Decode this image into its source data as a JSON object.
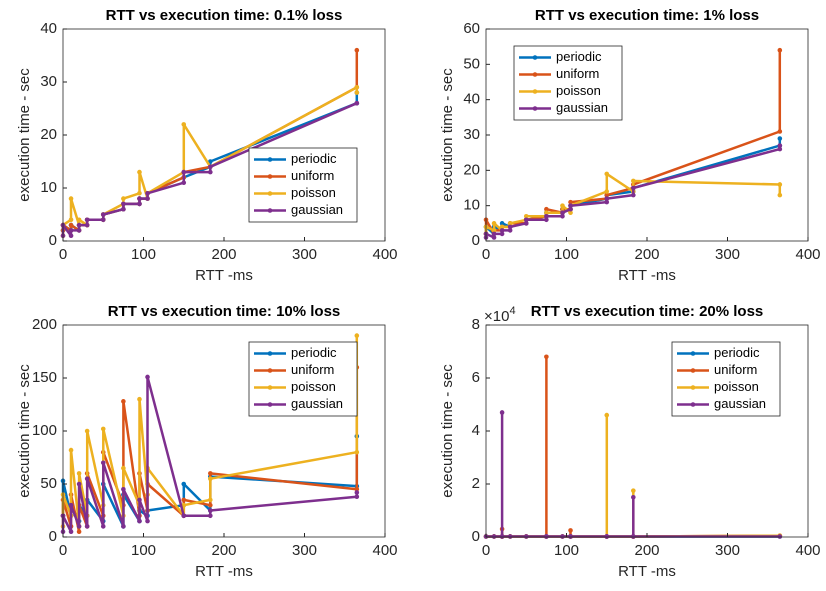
{
  "chart_data": [
    {
      "type": "line",
      "title": "RTT vs execution time: 0.1% loss",
      "x_label": "RTT -ms",
      "y_label": "execution time - sec",
      "x": [
        0,
        0,
        10,
        10,
        20,
        20,
        30,
        30,
        50,
        50,
        75,
        75,
        95,
        95,
        105,
        105,
        150,
        150,
        183,
        183,
        365,
        365
      ],
      "xlim": [
        0,
        400
      ],
      "xticks": [
        0,
        100,
        200,
        300,
        400
      ],
      "ylim": [
        0,
        40
      ],
      "yticks": [
        0,
        10,
        20,
        30,
        40
      ],
      "legend_location": "southeast",
      "series": [
        {
          "name": "periodic",
          "color": "#0072BD",
          "values": [
            2,
            3,
            2,
            3,
            2,
            3,
            3,
            4,
            4,
            5,
            6,
            7,
            7,
            8,
            8,
            9,
            12,
            12,
            14,
            15,
            26,
            28
          ]
        },
        {
          "name": "uniform",
          "color": "#D95319",
          "values": [
            2,
            3,
            2,
            3,
            2,
            3,
            3,
            4,
            4,
            5,
            6,
            7,
            7,
            8,
            8,
            9,
            12,
            13,
            14,
            14,
            29,
            36
          ]
        },
        {
          "name": "poisson",
          "color": "#EDB120",
          "values": [
            1,
            3,
            4,
            8,
            3,
            4,
            3,
            4,
            4,
            5,
            7,
            8,
            9,
            13,
            8,
            9,
            13,
            22,
            14,
            14,
            29,
            28
          ]
        },
        {
          "name": "gaussian",
          "color": "#7E2F8E",
          "values": [
            1,
            3,
            1,
            2,
            2,
            3,
            3,
            4,
            4,
            5,
            6,
            7,
            7,
            8,
            8,
            9,
            11,
            13,
            13,
            14,
            26,
            26
          ]
        }
      ]
    },
    {
      "type": "line",
      "title": "RTT vs execution time: 1% loss",
      "x_label": "RTT -ms",
      "y_label": "execution time - sec",
      "x": [
        0,
        0,
        10,
        10,
        20,
        20,
        30,
        30,
        50,
        50,
        75,
        75,
        95,
        95,
        105,
        105,
        150,
        150,
        183,
        183,
        365,
        365
      ],
      "xlim": [
        0,
        400
      ],
      "xticks": [
        0,
        100,
        200,
        300,
        400
      ],
      "ylim": [
        0,
        60
      ],
      "yticks": [
        0,
        10,
        20,
        30,
        40,
        50,
        60
      ],
      "legend_location": "northwest",
      "series": [
        {
          "name": "periodic",
          "color": "#0072BD",
          "values": [
            2,
            4,
            2,
            4,
            3,
            5,
            4,
            5,
            5,
            6,
            7,
            8,
            8,
            9,
            9,
            10,
            12,
            13,
            14,
            15,
            27,
            29
          ]
        },
        {
          "name": "uniform",
          "color": "#D95319",
          "values": [
            2,
            6,
            2,
            3,
            3,
            4,
            4,
            5,
            5,
            6,
            7,
            9,
            8,
            9,
            9,
            11,
            12,
            13,
            15,
            16,
            31,
            54
          ]
        },
        {
          "name": "poisson",
          "color": "#EDB120",
          "values": [
            2,
            4,
            3,
            5,
            3,
            4,
            4,
            5,
            6,
            7,
            7,
            8,
            8,
            10,
            8,
            10,
            14,
            19,
            14,
            17,
            16,
            13
          ]
        },
        {
          "name": "gaussian",
          "color": "#7E2F8E",
          "values": [
            1,
            2,
            1,
            2,
            2,
            3,
            3,
            4,
            5,
            6,
            6,
            7,
            7,
            8,
            9,
            10,
            11,
            12,
            13,
            15,
            26,
            27
          ]
        }
      ]
    },
    {
      "type": "line",
      "title": "RTT vs execution time: 10% loss",
      "x_label": "RTT -ms",
      "y_label": "execution time - sec",
      "x": [
        0,
        0,
        10,
        10,
        20,
        20,
        30,
        30,
        50,
        50,
        75,
        75,
        95,
        95,
        105,
        105,
        150,
        150,
        183,
        183,
        365,
        365
      ],
      "xlim": [
        0,
        400
      ],
      "xticks": [
        0,
        100,
        200,
        300,
        400
      ],
      "ylim": [
        0,
        200
      ],
      "yticks": [
        0,
        50,
        100,
        150,
        200
      ],
      "legend_location": "northeast",
      "series": [
        {
          "name": "periodic",
          "color": "#0072BD",
          "values": [
            20,
            53,
            20,
            30,
            15,
            30,
            20,
            35,
            15,
            50,
            10,
            40,
            15,
            25,
            20,
            25,
            30,
            50,
            25,
            57,
            48,
            95
          ]
        },
        {
          "name": "uniform",
          "color": "#D95319",
          "values": [
            20,
            35,
            10,
            40,
            5,
            30,
            10,
            60,
            20,
            80,
            30,
            128,
            20,
            60,
            25,
            50,
            20,
            35,
            30,
            60,
            45,
            160
          ]
        },
        {
          "name": "poisson",
          "color": "#EDB120",
          "values": [
            10,
            40,
            20,
            82,
            10,
            60,
            20,
            100,
            30,
            102,
            20,
            65,
            30,
            130,
            40,
            65,
            20,
            30,
            35,
            55,
            80,
            190
          ]
        },
        {
          "name": "gaussian",
          "color": "#7E2F8E",
          "values": [
            5,
            20,
            5,
            30,
            10,
            50,
            10,
            55,
            10,
            70,
            10,
            45,
            15,
            35,
            15,
            151,
            20,
            20,
            20,
            25,
            38,
            42
          ]
        }
      ]
    },
    {
      "type": "line",
      "title": "RTT vs execution time: 20% loss",
      "x_label": "RTT -ms",
      "y_label": "execution time - sec",
      "y_exponent": {
        "base": "×10",
        "power": "4"
      },
      "x": [
        0,
        10,
        20,
        20,
        20,
        30,
        50,
        75,
        75,
        75,
        95,
        105,
        105,
        105,
        150,
        150,
        150,
        183,
        183,
        183,
        365
      ],
      "xlim": [
        0,
        400
      ],
      "xticks": [
        0,
        100,
        200,
        300,
        400
      ],
      "ylim": [
        0,
        8
      ],
      "yticks": [
        0,
        2,
        4,
        6,
        8
      ],
      "legend_location": "northeast",
      "series": [
        {
          "name": "periodic",
          "color": "#0072BD",
          "values": [
            0.02,
            0.02,
            0.02,
            0.02,
            0.02,
            0.02,
            0.02,
            0.02,
            0.02,
            0.02,
            0.02,
            0.02,
            0.02,
            0.02,
            0.02,
            0.02,
            0.02,
            0.02,
            0.02,
            0.02,
            0.02
          ]
        },
        {
          "name": "uniform",
          "color": "#D95319",
          "values": [
            0.02,
            0.02,
            0.02,
            0.3,
            0.02,
            0.02,
            0.02,
            0.02,
            6.8,
            0.02,
            0.02,
            0.02,
            0.25,
            0.02,
            0.02,
            0.02,
            0.02,
            0.02,
            0.02,
            0.02,
            0.05
          ]
        },
        {
          "name": "poisson",
          "color": "#EDB120",
          "values": [
            0.02,
            0.02,
            0.02,
            0.02,
            0.02,
            0.02,
            0.02,
            0.02,
            0.02,
            0.02,
            0.02,
            0.02,
            0.02,
            0.02,
            0.02,
            4.6,
            0.02,
            0.02,
            1.75,
            0.02,
            0.05
          ]
        },
        {
          "name": "gaussian",
          "color": "#7E2F8E",
          "values": [
            0.02,
            0.02,
            0.02,
            4.7,
            0.02,
            0.02,
            0.02,
            0.02,
            0.02,
            0.02,
            0.02,
            0.02,
            0.02,
            0.02,
            0.02,
            0.02,
            0.02,
            0.02,
            1.5,
            0.02,
            0.02
          ]
        }
      ]
    }
  ]
}
